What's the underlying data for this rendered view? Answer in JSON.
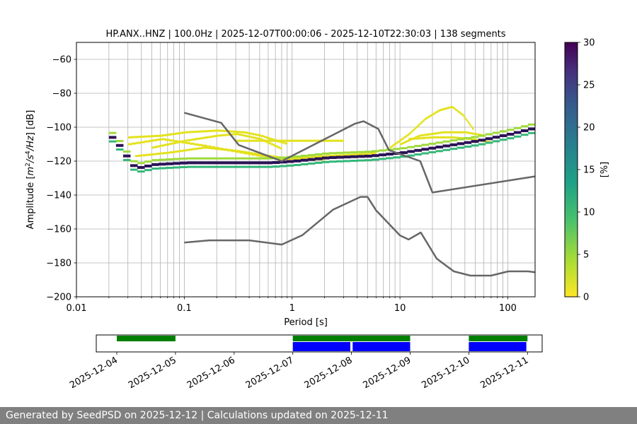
{
  "chart_data": {
    "type": "heatmap",
    "title": "HP.ANX..HNZ | 100.0Hz | 2025-12-07T00:00:06 - 2025-12-10T22:30:03 | 138 segments",
    "xlabel": "Period [s]",
    "ylabel_parts": [
      "Amplitude [",
      "m",
      "2",
      "/s",
      "4",
      "/Hz",
      "] [dB]"
    ],
    "xscale": "log",
    "xlim": [
      0.01,
      179
    ],
    "ylim": [
      -200,
      -50
    ],
    "grid": true,
    "x_ticks": [
      0.01,
      0.1,
      1,
      10,
      100
    ],
    "x_tick_labels": [
      "0.01",
      "0.1",
      "1",
      "10",
      "100"
    ],
    "y_ticks": [
      -200,
      -180,
      -160,
      -140,
      -120,
      -100,
      -80,
      -60
    ],
    "y_tick_labels": [
      "−200",
      "−180",
      "−160",
      "−140",
      "−120",
      "−100",
      "−80",
      "−60"
    ],
    "colorbar": {
      "label": "[%]",
      "min": 0,
      "max": 30,
      "ticks": [
        0,
        5,
        10,
        15,
        20,
        25,
        30
      ],
      "tick_labels": [
        "0",
        "5",
        "10",
        "15",
        "20",
        "25",
        "30"
      ]
    },
    "noise_models": [
      {
        "name": "NHNM",
        "x": [
          0.1,
          0.22,
          0.32,
          0.8,
          3.8,
          4.6,
          6.3,
          7.9,
          15.4,
          20,
          179
        ],
        "y": [
          -91.5,
          -97.4,
          -110.5,
          -120,
          -98,
          -96.5,
          -101,
          -113.5,
          -120,
          -138.5,
          -129
        ]
      },
      {
        "name": "NLNM",
        "x": [
          0.1,
          0.17,
          0.4,
          0.8,
          1.24,
          2.4,
          4.3,
          5,
          6,
          10,
          12,
          15.6,
          21.9,
          31.6,
          45,
          70,
          101,
          154,
          179
        ],
        "y": [
          -168,
          -166.7,
          -166.7,
          -169.2,
          -163.7,
          -148.6,
          -141.1,
          -141.1,
          -149,
          -163.8,
          -166.2,
          -162.1,
          -177.5,
          -185,
          -187.5,
          -187.5,
          -185,
          -185,
          -185.5
        ]
      },
      {
        "name": "mode (most probable)",
        "x": [
          0.02,
          0.025,
          0.03,
          0.035,
          0.05,
          0.1,
          0.3,
          0.6,
          1,
          2,
          5,
          10,
          20,
          50,
          100,
          179
        ],
        "y": [
          -106,
          -113,
          -122,
          -124,
          -122,
          -121,
          -121,
          -121,
          -120,
          -118,
          -117,
          -115,
          -112,
          -108,
          -104,
          -100
        ]
      }
    ],
    "bands": [
      {
        "name": "yellow-low-1",
        "x": [
          0.03,
          0.06,
          0.15,
          0.4,
          0.8,
          1.2,
          2,
          4,
          6
        ],
        "y": [
          -110,
          -107,
          -111,
          -116,
          -119,
          -118,
          -117,
          -116,
          -115
        ]
      },
      {
        "name": "yellow-low-2",
        "x": [
          0.035,
          0.07,
          0.15,
          0.3,
          0.6,
          1,
          2
        ],
        "y": [
          -117,
          -115,
          -112,
          -114,
          -117,
          -119,
          -119
        ]
      },
      {
        "name": "yellow-high-1",
        "x": [
          0.03,
          0.06,
          0.1,
          0.2,
          0.35,
          0.5,
          0.7,
          0.9
        ],
        "y": [
          -106,
          -105,
          -103,
          -102,
          -103,
          -105,
          -108,
          -110
        ]
      },
      {
        "name": "yellow-high-2",
        "x": [
          0.05,
          0.1,
          0.2,
          0.3,
          0.5,
          0.8
        ],
        "y": [
          -112,
          -108,
          -105,
          -104,
          -107,
          -113
        ]
      },
      {
        "name": "yellow-flat-1",
        "x": [
          0.3,
          0.6,
          1,
          2,
          3
        ],
        "y": [
          -108,
          -108,
          -108,
          -108,
          -108
        ]
      },
      {
        "name": "yellow-right-hump",
        "x": [
          8,
          12,
          17,
          23,
          30,
          38,
          48
        ],
        "y": [
          -112,
          -104,
          -95,
          -90,
          -88,
          -93,
          -102
        ]
      },
      {
        "name": "yellow-right-1",
        "x": [
          10,
          15,
          25,
          40,
          60
        ],
        "y": [
          -110,
          -105,
          -103,
          -103,
          -105
        ]
      },
      {
        "name": "yellow-right-2",
        "x": [
          12,
          20,
          30,
          45,
          70
        ],
        "y": [
          -107,
          -106,
          -106,
          -107,
          -109
        ]
      }
    ],
    "timeline": {
      "x_tick_labels": [
        "2025-12-04",
        "2025-12-05",
        "2025-12-06",
        "2025-12-07",
        "2025-12-08",
        "2025-12-09",
        "2025-12-10",
        "2025-12-11"
      ],
      "range_days": [
        3.65,
        11.25
      ],
      "available_data": [
        [
          4.0,
          5.0
        ],
        [
          7.0,
          9.0
        ],
        [
          10.0,
          11.0
        ]
      ],
      "used_data": [
        [
          7.0,
          7.98
        ],
        [
          8.02,
          9.0
        ],
        [
          10.0,
          10.98
        ]
      ]
    }
  },
  "footer": {
    "text": "Generated by SeedPSD on 2025-12-12 | Calculations updated on 2025-12-11"
  },
  "colors": {
    "nlnm_nhnm": "#666666",
    "grid": "#b0b0b0",
    "available": "#008000",
    "used": "#0000ff",
    "footer_bg": "#808080"
  }
}
